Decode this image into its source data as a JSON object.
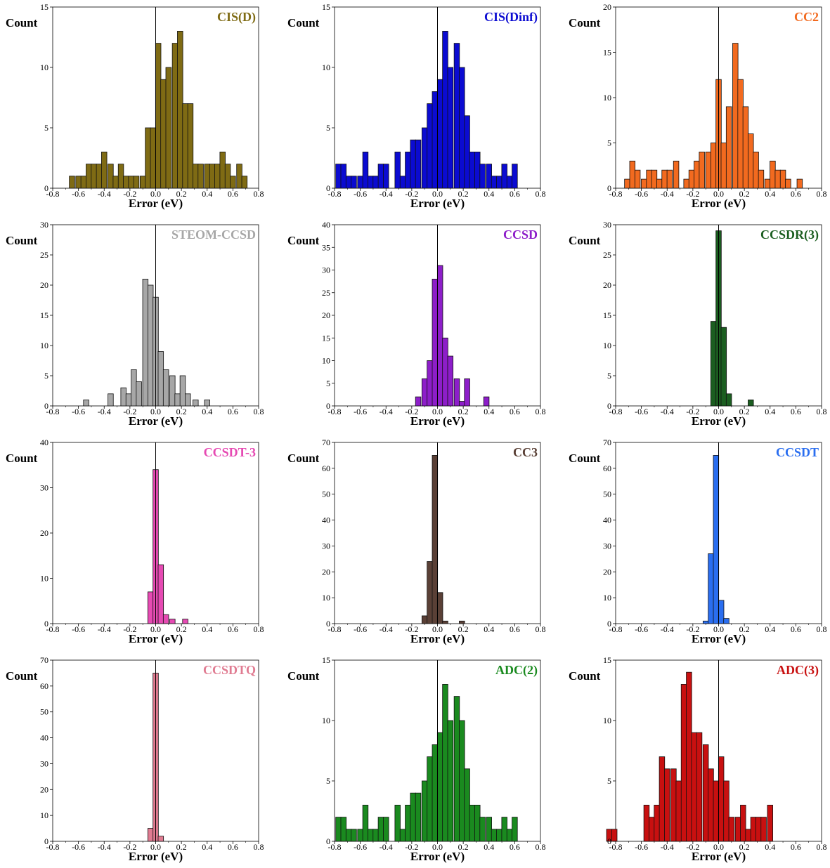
{
  "colors": {
    "edge": "#111111",
    "axis": "#000000"
  },
  "x_ticks": [
    "-0.8",
    "-0.6",
    "-0.4",
    "-0.2",
    "0.0",
    "0.2",
    "0.4",
    "0.6",
    "0.8"
  ],
  "x_tick_values": [
    -0.8,
    -0.6,
    -0.4,
    -0.2,
    0.0,
    0.2,
    0.4,
    0.6,
    0.8
  ],
  "chart_data": [
    {
      "type": "bar",
      "method": "CIS(D)",
      "color": "#7f6b14",
      "xlabel": "Error (eV)",
      "ylabel": "Count",
      "xlim": [
        -0.8,
        0.8
      ],
      "ylim": [
        0,
        15
      ],
      "yticks": [
        0,
        5,
        10,
        15
      ],
      "bin_width": 0.0417,
      "bins": [
        [
          -0.65,
          1
        ],
        [
          -0.6,
          1
        ],
        [
          -0.56,
          1
        ],
        [
          -0.52,
          2
        ],
        [
          -0.48,
          2
        ],
        [
          -0.44,
          2
        ],
        [
          -0.4,
          3
        ],
        [
          -0.35,
          2
        ],
        [
          -0.31,
          1
        ],
        [
          -0.27,
          2
        ],
        [
          -0.23,
          1
        ],
        [
          -0.19,
          1
        ],
        [
          -0.15,
          1
        ],
        [
          -0.1,
          1
        ],
        [
          -0.06,
          5
        ],
        [
          -0.02,
          5
        ],
        [
          0.02,
          12
        ],
        [
          0.06,
          9
        ],
        [
          0.1,
          10
        ],
        [
          0.15,
          12
        ],
        [
          0.19,
          13
        ],
        [
          0.23,
          7
        ],
        [
          0.27,
          7
        ],
        [
          0.31,
          2
        ],
        [
          0.35,
          2
        ],
        [
          0.4,
          2
        ],
        [
          0.44,
          2
        ],
        [
          0.48,
          2
        ],
        [
          0.52,
          3
        ],
        [
          0.56,
          2
        ],
        [
          0.6,
          1
        ],
        [
          0.65,
          2
        ],
        [
          0.69,
          1
        ]
      ]
    },
    {
      "type": "bar",
      "method": "CIS(Dinf)",
      "color": "#0b0bd1",
      "xlabel": "Error (eV)",
      "ylabel": "Count",
      "xlim": [
        -0.8,
        0.8
      ],
      "ylim": [
        0,
        15
      ],
      "yticks": [
        0,
        5,
        10,
        15
      ],
      "bin_width": 0.0417,
      "bins": [
        [
          -0.77,
          2
        ],
        [
          -0.73,
          2
        ],
        [
          -0.69,
          1
        ],
        [
          -0.65,
          1
        ],
        [
          -0.6,
          1
        ],
        [
          -0.56,
          3
        ],
        [
          -0.52,
          1
        ],
        [
          -0.48,
          1
        ],
        [
          -0.44,
          2
        ],
        [
          -0.4,
          2
        ],
        [
          -0.31,
          3
        ],
        [
          -0.27,
          1
        ],
        [
          -0.23,
          3
        ],
        [
          -0.19,
          4
        ],
        [
          -0.15,
          4
        ],
        [
          -0.1,
          5
        ],
        [
          -0.06,
          7
        ],
        [
          -0.02,
          8
        ],
        [
          0.02,
          9
        ],
        [
          0.06,
          13
        ],
        [
          0.1,
          10
        ],
        [
          0.15,
          12
        ],
        [
          0.19,
          10
        ],
        [
          0.23,
          6
        ],
        [
          0.27,
          3
        ],
        [
          0.31,
          3
        ],
        [
          0.35,
          2
        ],
        [
          0.4,
          2
        ],
        [
          0.44,
          1
        ],
        [
          0.48,
          1
        ],
        [
          0.52,
          2
        ],
        [
          0.56,
          1
        ],
        [
          0.6,
          2
        ]
      ]
    },
    {
      "type": "bar",
      "method": "CC2",
      "color": "#f26a1f",
      "xlabel": "Error (eV)",
      "ylabel": "Count",
      "xlim": [
        -0.8,
        0.8
      ],
      "ylim": [
        0,
        20
      ],
      "yticks": [
        0,
        5,
        10,
        15,
        20
      ],
      "bin_width": 0.0417,
      "bins": [
        [
          -0.71,
          1
        ],
        [
          -0.67,
          3
        ],
        [
          -0.63,
          2
        ],
        [
          -0.58,
          1
        ],
        [
          -0.54,
          2
        ],
        [
          -0.5,
          2
        ],
        [
          -0.46,
          1
        ],
        [
          -0.42,
          2
        ],
        [
          -0.38,
          2
        ],
        [
          -0.33,
          3
        ],
        [
          -0.25,
          1
        ],
        [
          -0.21,
          2
        ],
        [
          -0.17,
          3
        ],
        [
          -0.13,
          4
        ],
        [
          -0.08,
          4
        ],
        [
          -0.04,
          5
        ],
        [
          0.0,
          12
        ],
        [
          0.04,
          5
        ],
        [
          0.08,
          9
        ],
        [
          0.13,
          16
        ],
        [
          0.17,
          12
        ],
        [
          0.21,
          9
        ],
        [
          0.25,
          6
        ],
        [
          0.29,
          4
        ],
        [
          0.33,
          2
        ],
        [
          0.38,
          1
        ],
        [
          0.42,
          3
        ],
        [
          0.46,
          2
        ],
        [
          0.5,
          2
        ],
        [
          0.54,
          1
        ],
        [
          0.63,
          1
        ]
      ]
    },
    {
      "type": "bar",
      "method": "STEOM-CCSD",
      "color": "#a7a7a7",
      "xlabel": "Error (eV)",
      "ylabel": "Count",
      "xlim": [
        -0.8,
        0.8
      ],
      "ylim": [
        0,
        30
      ],
      "yticks": [
        0,
        5,
        10,
        15,
        20,
        25,
        30
      ],
      "bin_width": 0.0417,
      "bins": [
        [
          -0.54,
          1
        ],
        [
          -0.35,
          2
        ],
        [
          -0.25,
          3
        ],
        [
          -0.21,
          2
        ],
        [
          -0.17,
          6
        ],
        [
          -0.13,
          4
        ],
        [
          -0.08,
          21
        ],
        [
          -0.04,
          20
        ],
        [
          0.0,
          18
        ],
        [
          0.04,
          9
        ],
        [
          0.08,
          6
        ],
        [
          0.13,
          5
        ],
        [
          0.17,
          2
        ],
        [
          0.21,
          5
        ],
        [
          0.25,
          2
        ],
        [
          0.31,
          1
        ],
        [
          0.4,
          1
        ]
      ]
    },
    {
      "type": "bar",
      "method": "CCSD",
      "color": "#8d1ec9",
      "xlabel": "Error (eV)",
      "ylabel": "Count",
      "xlim": [
        -0.8,
        0.8
      ],
      "ylim": [
        0,
        40
      ],
      "yticks": [
        0,
        5,
        10,
        15,
        20,
        25,
        30,
        35,
        40
      ],
      "bin_width": 0.0417,
      "bins": [
        [
          -0.15,
          2
        ],
        [
          -0.1,
          6
        ],
        [
          -0.06,
          10
        ],
        [
          -0.02,
          28
        ],
        [
          0.02,
          31
        ],
        [
          0.06,
          15
        ],
        [
          0.1,
          11
        ],
        [
          0.15,
          6
        ],
        [
          0.19,
          1
        ],
        [
          0.23,
          6
        ],
        [
          0.38,
          2
        ]
      ]
    },
    {
      "type": "bar",
      "method": "CCSDR(3)",
      "color": "#1b5e20",
      "xlabel": "Error (eV)",
      "ylabel": "Count",
      "xlim": [
        -0.8,
        0.8
      ],
      "ylim": [
        0,
        30
      ],
      "yticks": [
        0,
        5,
        10,
        15,
        20,
        25,
        30
      ],
      "bin_width": 0.0417,
      "bins": [
        [
          -0.04,
          14
        ],
        [
          0.0,
          29
        ],
        [
          0.04,
          13
        ],
        [
          0.08,
          2
        ],
        [
          0.25,
          1
        ]
      ]
    },
    {
      "type": "bar",
      "method": "CCSDT-3",
      "color": "#e64ab3",
      "xlabel": "Error (eV)",
      "ylabel": "Count",
      "xlim": [
        -0.8,
        0.8
      ],
      "ylim": [
        0,
        40
      ],
      "yticks": [
        0,
        10,
        20,
        30,
        40
      ],
      "bin_width": 0.0417,
      "bins": [
        [
          -0.04,
          7
        ],
        [
          0.0,
          34
        ],
        [
          0.04,
          13
        ],
        [
          0.08,
          2
        ],
        [
          0.13,
          1
        ],
        [
          0.23,
          1
        ]
      ]
    },
    {
      "type": "bar",
      "method": "CC3",
      "color": "#5a4036",
      "xlabel": "Error (eV)",
      "ylabel": "Count",
      "xlim": [
        -0.8,
        0.8
      ],
      "ylim": [
        0,
        70
      ],
      "yticks": [
        0,
        10,
        20,
        30,
        40,
        50,
        60,
        70
      ],
      "bin_width": 0.0417,
      "bins": [
        [
          -0.1,
          3
        ],
        [
          -0.06,
          24
        ],
        [
          -0.02,
          65
        ],
        [
          0.02,
          12
        ],
        [
          0.06,
          1
        ],
        [
          0.19,
          1
        ]
      ]
    },
    {
      "type": "bar",
      "method": "CCSDT",
      "color": "#2a6ef0",
      "xlabel": "Error (eV)",
      "ylabel": "Count",
      "xlim": [
        -0.8,
        0.8
      ],
      "ylim": [
        0,
        70
      ],
      "yticks": [
        0,
        10,
        20,
        30,
        40,
        50,
        60,
        70
      ],
      "bin_width": 0.0417,
      "bins": [
        [
          -0.1,
          1
        ],
        [
          -0.06,
          27
        ],
        [
          -0.02,
          65
        ],
        [
          0.02,
          9
        ],
        [
          0.06,
          2
        ]
      ]
    },
    {
      "type": "bar",
      "method": "CCSDTQ",
      "color": "#e07b91",
      "xlabel": "Error (eV)",
      "ylabel": "Count",
      "xlim": [
        -0.8,
        0.8
      ],
      "ylim": [
        0,
        70
      ],
      "yticks": [
        0,
        10,
        20,
        30,
        40,
        50,
        60,
        70
      ],
      "bin_width": 0.0417,
      "bins": [
        [
          -0.04,
          5
        ],
        [
          0.0,
          65
        ],
        [
          0.04,
          2
        ]
      ]
    },
    {
      "type": "bar",
      "method": "ADC(2)",
      "color": "#1a8a1f",
      "xlabel": "Error (eV)",
      "ylabel": "Count",
      "xlim": [
        -0.8,
        0.8
      ],
      "ylim": [
        0,
        15
      ],
      "yticks": [
        0,
        5,
        10,
        15
      ],
      "bin_width": 0.0417,
      "bins": [
        [
          -0.77,
          2
        ],
        [
          -0.73,
          2
        ],
        [
          -0.69,
          1
        ],
        [
          -0.65,
          1
        ],
        [
          -0.6,
          1
        ],
        [
          -0.56,
          3
        ],
        [
          -0.52,
          1
        ],
        [
          -0.48,
          1
        ],
        [
          -0.44,
          2
        ],
        [
          -0.4,
          2
        ],
        [
          -0.31,
          3
        ],
        [
          -0.27,
          1
        ],
        [
          -0.23,
          3
        ],
        [
          -0.19,
          4
        ],
        [
          -0.15,
          4
        ],
        [
          -0.1,
          5
        ],
        [
          -0.06,
          7
        ],
        [
          -0.02,
          8
        ],
        [
          0.02,
          9
        ],
        [
          0.06,
          13
        ],
        [
          0.1,
          10
        ],
        [
          0.15,
          12
        ],
        [
          0.19,
          10
        ],
        [
          0.23,
          6
        ],
        [
          0.27,
          3
        ],
        [
          0.31,
          3
        ],
        [
          0.35,
          2
        ],
        [
          0.4,
          2
        ],
        [
          0.44,
          1
        ],
        [
          0.48,
          1
        ],
        [
          0.52,
          2
        ],
        [
          0.56,
          1
        ],
        [
          0.6,
          2
        ]
      ]
    },
    {
      "type": "bar",
      "method": "ADC(3)",
      "color": "#c81010",
      "xlabel": "Error (eV)",
      "ylabel": "Count",
      "xlim": [
        -0.8,
        0.8
      ],
      "ylim": [
        0,
        15
      ],
      "yticks": [
        0,
        5,
        10,
        15
      ],
      "bin_width": 0.0417,
      "bins": [
        [
          -0.85,
          1
        ],
        [
          -0.81,
          1
        ],
        [
          -0.56,
          3
        ],
        [
          -0.52,
          2
        ],
        [
          -0.48,
          3
        ],
        [
          -0.44,
          7
        ],
        [
          -0.4,
          6
        ],
        [
          -0.35,
          6
        ],
        [
          -0.31,
          5
        ],
        [
          -0.27,
          13
        ],
        [
          -0.23,
          14
        ],
        [
          -0.19,
          9
        ],
        [
          -0.15,
          9
        ],
        [
          -0.1,
          8
        ],
        [
          -0.06,
          6
        ],
        [
          -0.02,
          5
        ],
        [
          0.02,
          7
        ],
        [
          0.06,
          5
        ],
        [
          0.1,
          2
        ],
        [
          0.15,
          2
        ],
        [
          0.19,
          3
        ],
        [
          0.23,
          1
        ],
        [
          0.27,
          2
        ],
        [
          0.31,
          2
        ],
        [
          0.35,
          2
        ],
        [
          0.4,
          3
        ]
      ]
    }
  ]
}
